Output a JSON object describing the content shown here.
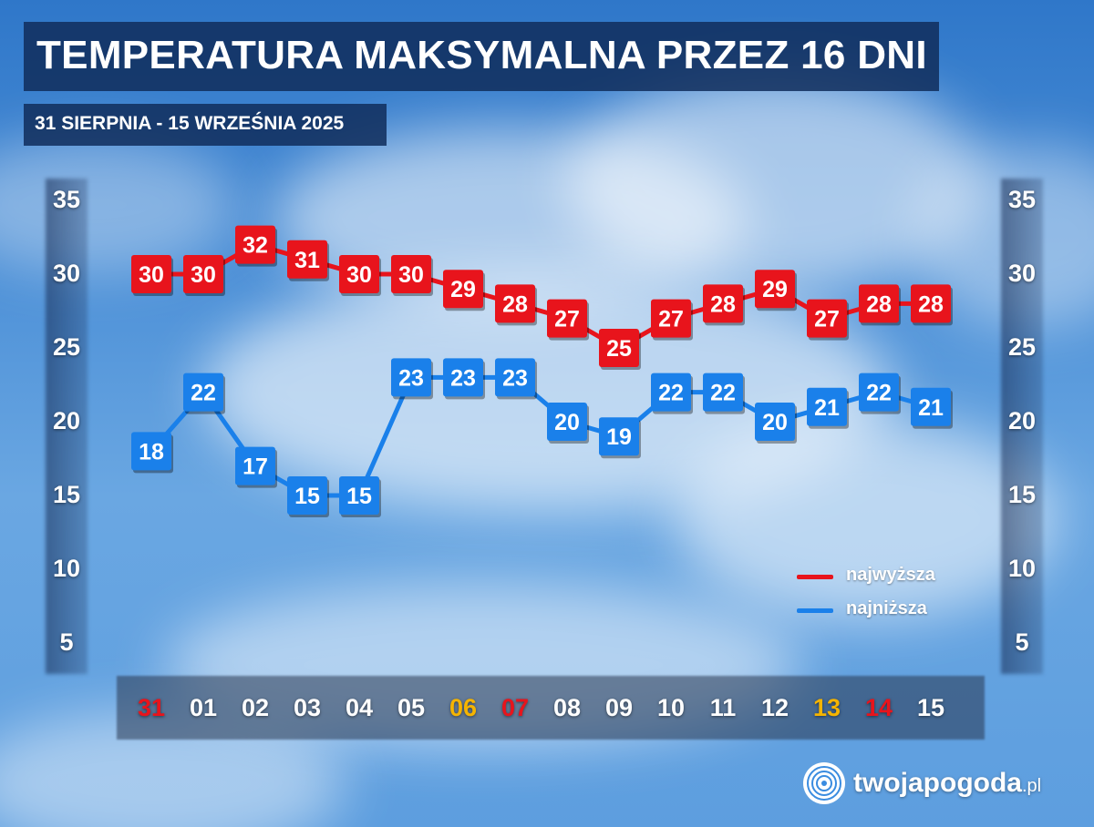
{
  "header": {
    "title": "TEMPERATURA MAKSYMALNA PRZEZ 16 DNI",
    "subtitle": "31 SIERPNIA - 15 WRZEŚNIA 2025"
  },
  "legend": {
    "high_label": "najwyższa",
    "low_label": "najniższa"
  },
  "logo": {
    "name": "twojapogoda",
    "suffix": ".pl"
  },
  "colors": {
    "high": "#e8141c",
    "low": "#1a80ea",
    "weekday": "#ffffff",
    "saturday": "#f5b400",
    "sunday": "#e8141c"
  },
  "chart_data": {
    "type": "line",
    "categories": [
      "31",
      "01",
      "02",
      "03",
      "04",
      "05",
      "06",
      "07",
      "08",
      "09",
      "10",
      "11",
      "12",
      "13",
      "14",
      "15"
    ],
    "category_colors": [
      "sunday",
      "weekday",
      "weekday",
      "weekday",
      "weekday",
      "weekday",
      "saturday",
      "sunday",
      "weekday",
      "weekday",
      "weekday",
      "weekday",
      "weekday",
      "saturday",
      "sunday",
      "weekday"
    ],
    "series": [
      {
        "name": "najwyższa",
        "color": "#e8141c",
        "values": [
          30,
          30,
          32,
          31,
          30,
          30,
          29,
          28,
          27,
          25,
          27,
          28,
          29,
          27,
          28,
          28
        ]
      },
      {
        "name": "najniższa",
        "color": "#1a80ea",
        "values": [
          18,
          22,
          17,
          15,
          15,
          23,
          23,
          23,
          20,
          19,
          22,
          22,
          20,
          21,
          22,
          21
        ]
      }
    ],
    "yticks": [
      35,
      30,
      25,
      20,
      15,
      10,
      5
    ],
    "ylim": [
      5,
      35
    ],
    "grid": false,
    "legend_position": "bottom-right"
  }
}
